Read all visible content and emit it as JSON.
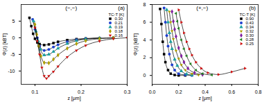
{
  "chart_data": [
    {
      "type": "scatter",
      "panel_label": "(a)",
      "annotation": "(−,−)",
      "x_label": "z [μm]",
      "y_label": "Φ(z) [kBT]",
      "xlim": [
        0.07,
        0.3
      ],
      "xticks": [
        0.1,
        0.2,
        0.3
      ],
      "ylim": [
        -14,
        10
      ],
      "yticks": [
        -10,
        -5,
        0,
        5
      ],
      "legend": "top-right",
      "legend_title": "TC-T [K]",
      "series": [
        {
          "name": "0.30",
          "color": "#000000",
          "marker": "square",
          "line_style": "solid",
          "x": [
            0.088,
            0.092,
            0.096,
            0.1,
            0.105,
            0.11,
            0.12,
            0.13,
            0.14,
            0.15,
            0.17,
            0.19,
            0.21,
            0.24,
            0.27
          ],
          "values": [
            6,
            3.5,
            1.2,
            -0.3,
            -1.4,
            -1.9,
            -2.2,
            -2.0,
            -1.6,
            -1.2,
            -0.7,
            -0.4,
            -0.2,
            -0.1,
            0
          ]
        },
        {
          "name": "0.21",
          "color": "#1f3fd0",
          "marker": "circle",
          "line_style": "solid",
          "x": [
            0.095,
            0.1,
            0.105,
            0.11,
            0.12,
            0.13,
            0.14,
            0.15,
            0.17,
            0.19,
            0.21,
            0.24
          ],
          "values": [
            5.5,
            2.5,
            0,
            -2.5,
            -3.8,
            -3.5,
            -2.8,
            -2.1,
            -1.2,
            -0.6,
            -0.3,
            -0.1
          ]
        },
        {
          "name": "0.19",
          "color": "#1aa0a0",
          "marker": "triangle",
          "line_style": "solid",
          "x": [
            0.097,
            0.102,
            0.107,
            0.112,
            0.12,
            0.13,
            0.14,
            0.15,
            0.17,
            0.19,
            0.21,
            0.24
          ],
          "values": [
            5,
            2,
            -1,
            -3.5,
            -5.2,
            -5.0,
            -4.2,
            -3.2,
            -1.8,
            -0.9,
            -0.4,
            -0.1
          ]
        },
        {
          "name": "0.18",
          "color": "#b0a000",
          "marker": "diamond",
          "line_style": "solid",
          "x": [
            0.1,
            0.104,
            0.108,
            0.113,
            0.12,
            0.13,
            0.14,
            0.15,
            0.17,
            0.19,
            0.21,
            0.24,
            0.27
          ],
          "values": [
            4,
            1,
            -2.5,
            -5.5,
            -7.5,
            -7.6,
            -6.5,
            -5.2,
            -3.2,
            -1.8,
            -0.9,
            -0.3,
            -0.1
          ]
        },
        {
          "name": "0.16",
          "color": "#d01010",
          "marker": "triangle-down",
          "line_style": "solid",
          "x": [
            0.1,
            0.105,
            0.11,
            0.115,
            0.12,
            0.125,
            0.13,
            0.14,
            0.15,
            0.17,
            0.19,
            0.21,
            0.24,
            0.27,
            0.3
          ],
          "values": [
            3,
            -1,
            -5,
            -9,
            -11.5,
            -12.2,
            -11.5,
            -10.2,
            -8.6,
            -5.8,
            -3.8,
            -2.3,
            -1,
            -0.3,
            0
          ]
        }
      ]
    },
    {
      "type": "scatter",
      "panel_label": "(b)",
      "annotation": "(+,−)",
      "x_label": "z [μm]",
      "y_label": "Φ(z) [kBT]",
      "xlim": [
        0,
        0.8
      ],
      "xticks": [
        {
          "value": 0,
          "label": "0.0"
        },
        0.2,
        0.4,
        0.6,
        0.8
      ],
      "ylim": [
        -1,
        8
      ],
      "yticks": [
        0,
        2,
        4,
        6,
        8
      ],
      "legend": "top-right",
      "legend_title": "TC-T [K]",
      "series": [
        {
          "name": "0.90",
          "color": "#000000",
          "marker": "square",
          "line_style": "solid",
          "x": [
            0.06,
            0.07,
            0.08,
            0.09,
            0.1,
            0.12,
            0.14,
            0.17,
            0.2,
            0.25
          ],
          "values": [
            7.5,
            5.8,
            3.8,
            2.4,
            1.5,
            0.6,
            0.2,
            0.05,
            0,
            0
          ]
        },
        {
          "name": "0.43",
          "color": "#1f3fd0",
          "marker": "circle",
          "line_style": "solid",
          "x": [
            0.09,
            0.1,
            0.11,
            0.12,
            0.13,
            0.15,
            0.17,
            0.2,
            0.25,
            0.3
          ],
          "values": [
            7.6,
            6,
            4.5,
            3.3,
            2.4,
            1.2,
            0.6,
            0.2,
            0.05,
            0
          ]
        },
        {
          "name": "0.34",
          "color": "#1aa0a0",
          "marker": "triangle",
          "line_style": "solid",
          "x": [
            0.11,
            0.12,
            0.13,
            0.14,
            0.15,
            0.17,
            0.19,
            0.22,
            0.26,
            0.3
          ],
          "values": [
            7.4,
            6,
            4.8,
            3.8,
            3,
            1.8,
            1.1,
            0.5,
            0.15,
            0.05
          ]
        },
        {
          "name": "0.32",
          "color": "#b0a000",
          "marker": "triangle-down",
          "line_style": "solid",
          "x": [
            0.13,
            0.14,
            0.15,
            0.16,
            0.18,
            0.2,
            0.22,
            0.25,
            0.3,
            0.35
          ],
          "values": [
            7.2,
            6,
            5,
            4.1,
            2.8,
            1.9,
            1.2,
            0.6,
            0.2,
            0.05
          ]
        },
        {
          "name": "0.30",
          "color": "#8020a0",
          "marker": "diamond",
          "line_style": "solid",
          "x": [
            0.15,
            0.16,
            0.17,
            0.18,
            0.2,
            0.22,
            0.24,
            0.27,
            0.32,
            0.38
          ],
          "values": [
            7.2,
            6.1,
            5.2,
            4.4,
            3.1,
            2.2,
            1.5,
            0.8,
            0.3,
            0.1
          ]
        },
        {
          "name": "0.28",
          "color": "#208020",
          "marker": "triangle-left",
          "line_style": "solid",
          "x": [
            0.18,
            0.19,
            0.2,
            0.22,
            0.24,
            0.26,
            0.29,
            0.33,
            0.38,
            0.45
          ],
          "values": [
            7,
            6.1,
            5.3,
            4,
            3,
            2.2,
            1.3,
            0.6,
            0.2,
            0.05
          ]
        },
        {
          "name": "0.25",
          "color": "#d01010",
          "marker": "triangle-right",
          "line_style": "solid",
          "x": [
            0.2,
            0.22,
            0.24,
            0.26,
            0.28,
            0.3,
            0.33,
            0.37,
            0.42,
            0.5,
            0.6,
            0.7
          ],
          "values": [
            7.4,
            6,
            4.8,
            3.8,
            3,
            2.3,
            1.5,
            0.8,
            0.3,
            0.1,
            0.4,
            0.8
          ]
        }
      ]
    }
  ]
}
